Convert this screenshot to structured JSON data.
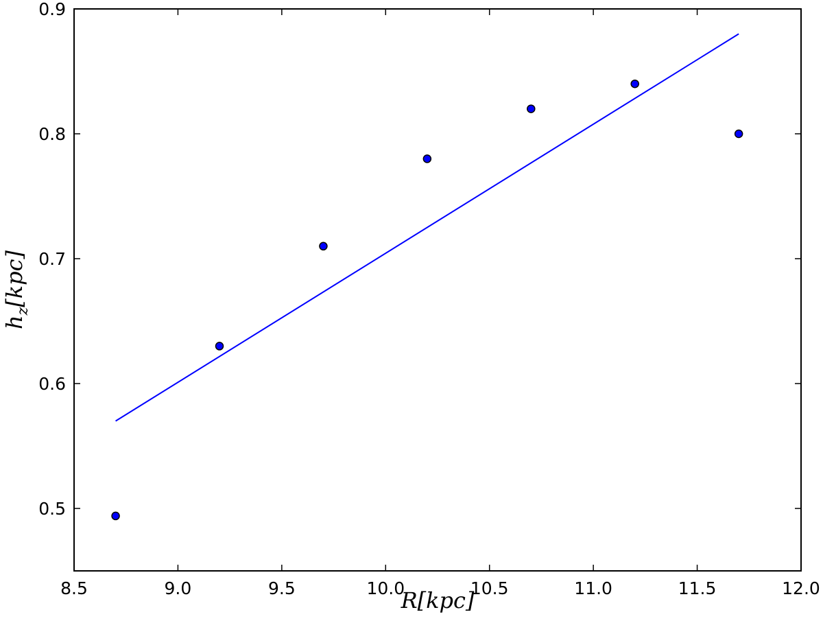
{
  "chart_data": {
    "type": "scatter",
    "xlabel": "R[kpc]",
    "ylabel": "h_z[kpc]",
    "xlim": [
      8.5,
      12.0
    ],
    "ylim": [
      0.45,
      0.9
    ],
    "x_ticks": [
      "8.5",
      "9.0",
      "9.5",
      "10.0",
      "10.5",
      "11.0",
      "11.5",
      "12.0"
    ],
    "y_ticks": [
      "0.5",
      "0.6",
      "0.7",
      "0.8",
      "0.9"
    ],
    "grid": false,
    "colors": {
      "points": "#0000ff",
      "fit_line": "#0000ff",
      "axes": "#000000"
    },
    "series": [
      {
        "kind": "points",
        "x": [
          8.7,
          9.2,
          9.7,
          10.2,
          10.7,
          11.2,
          11.7
        ],
        "y": [
          0.494,
          0.63,
          0.71,
          0.78,
          0.82,
          0.84,
          0.8
        ]
      },
      {
        "kind": "line",
        "x": [
          8.7,
          11.7
        ],
        "y": [
          0.57,
          0.88
        ]
      }
    ]
  }
}
